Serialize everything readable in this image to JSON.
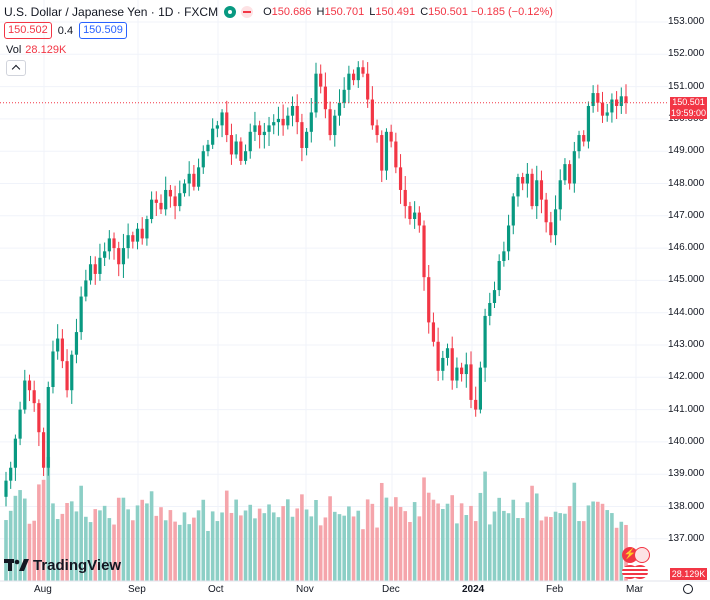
{
  "header": {
    "title": "U.S. Dollar / Japanese Yen · 1D · FXCM",
    "ohlc": {
      "o_label": "O",
      "o": "150.686",
      "h_label": "H",
      "h": "150.701",
      "l_label": "L",
      "l": "150.491",
      "c_label": "C",
      "c": "150.501",
      "change": "−0.185 (−0.12%)"
    },
    "sell_price": "150.502",
    "spread": "0.4",
    "buy_price": "150.509",
    "vol_label": "Vol",
    "vol_value": "28.129K"
  },
  "price_tag": {
    "price": "150.501",
    "countdown": "19:59:00"
  },
  "volume_tag": "28.129K",
  "branding": {
    "logo_text": "TradingView"
  },
  "colors": {
    "up": "#089981",
    "down": "#f23645",
    "up_vol": "#8ccfc6",
    "down_vol": "#f5a5ab",
    "accent": "#2962ff"
  },
  "chart_data": {
    "type": "candlestick",
    "ylim": [
      136.3,
      153.4
    ],
    "y_ticks": [
      153.0,
      152.0,
      151.0,
      150.0,
      149.0,
      148.0,
      147.0,
      146.0,
      145.0,
      144.0,
      143.0,
      142.0,
      141.0,
      140.0,
      139.0,
      138.0,
      137.0
    ],
    "x_ticks": [
      "Aug",
      "Sep",
      "Oct",
      "Nov",
      "Dec",
      "2024",
      "Feb",
      "Mar"
    ],
    "close": [
      138.8,
      139.2,
      140.1,
      141.0,
      141.9,
      141.6,
      141.2,
      140.3,
      139.2,
      141.7,
      142.8,
      143.2,
      142.5,
      141.6,
      142.7,
      143.4,
      144.5,
      145.0,
      145.5,
      145.2,
      145.7,
      145.9,
      146.3,
      146.0,
      145.5,
      146.0,
      146.4,
      146.2,
      146.6,
      146.3,
      146.9,
      147.5,
      147.4,
      147.2,
      147.8,
      147.6,
      147.3,
      147.7,
      148.0,
      148.3,
      147.9,
      148.5,
      149.0,
      149.2,
      149.7,
      149.8,
      150.2,
      149.5,
      148.9,
      149.3,
      148.7,
      149.0,
      149.6,
      149.8,
      149.5,
      149.6,
      149.8,
      149.9,
      150.0,
      149.8,
      150.1,
      150.4,
      149.9,
      149.1,
      149.6,
      150.2,
      151.4,
      151.0,
      150.3,
      149.5,
      150.1,
      150.5,
      150.9,
      151.4,
      151.2,
      151.6,
      151.4,
      150.6,
      149.8,
      149.5,
      148.4,
      149.6,
      149.3,
      148.5,
      147.8,
      147.3,
      146.9,
      147.1,
      146.7,
      145.1,
      143.7,
      143.1,
      142.2,
      142.6,
      142.9,
      141.9,
      142.3,
      142.1,
      142.4,
      141.3,
      141.0,
      142.3,
      143.9,
      144.3,
      144.7,
      145.6,
      145.9,
      146.7,
      147.6,
      148.2,
      148.0,
      148.3,
      147.3,
      148.1,
      147.5,
      146.8,
      146.4,
      147.2,
      148.1,
      148.6,
      148.0,
      149.0,
      149.5,
      149.3,
      150.4,
      150.8,
      150.5,
      150.1,
      150.2,
      150.6,
      150.4,
      150.7,
      150.5
    ],
    "volume_estimate_note": ""
  }
}
